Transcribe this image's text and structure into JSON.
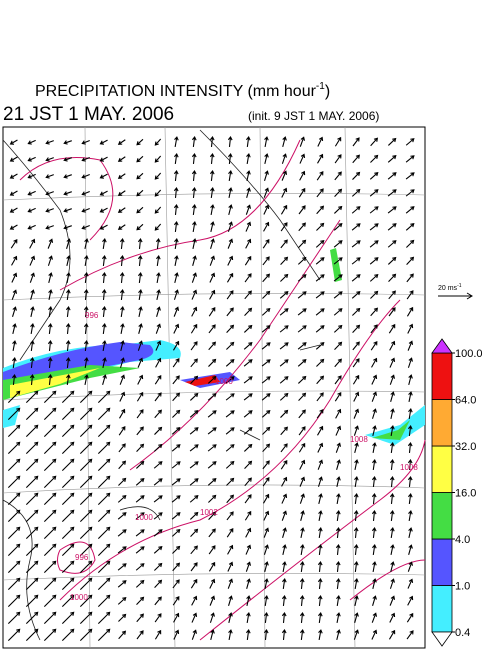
{
  "header": {
    "title": "PRECIPITATION INTENSITY (mm hour",
    "title_exp": "-1",
    "title_end": ")",
    "valid": "21 JST 1 MAY. 2006",
    "init": "(init. 9 JST 1 MAY. 2006)"
  },
  "wind_scale": {
    "label": "20 ms",
    "exp": "-1"
  },
  "colorbar": {
    "levels": [
      {
        "value": 0.4,
        "label": "0.4"
      },
      {
        "value": 1,
        "label": "1.0"
      },
      {
        "value": 4,
        "label": "4.0"
      },
      {
        "value": 16,
        "label": "16.0"
      },
      {
        "value": 32,
        "label": "32.0"
      },
      {
        "value": 64,
        "label": "64.0"
      },
      {
        "value": 100,
        "label": "100.0"
      }
    ],
    "colors": [
      "#44eeff",
      "#5555ff",
      "#44dd44",
      "#ffff44",
      "#ffaa33",
      "#ee1111"
    ],
    "over_color": "#cc33ff",
    "under_color": "#ffffff"
  },
  "isobar_labels": [
    "996",
    "1000",
    "1002",
    "1008",
    "1000",
    "996",
    "1000",
    "1008"
  ]
}
